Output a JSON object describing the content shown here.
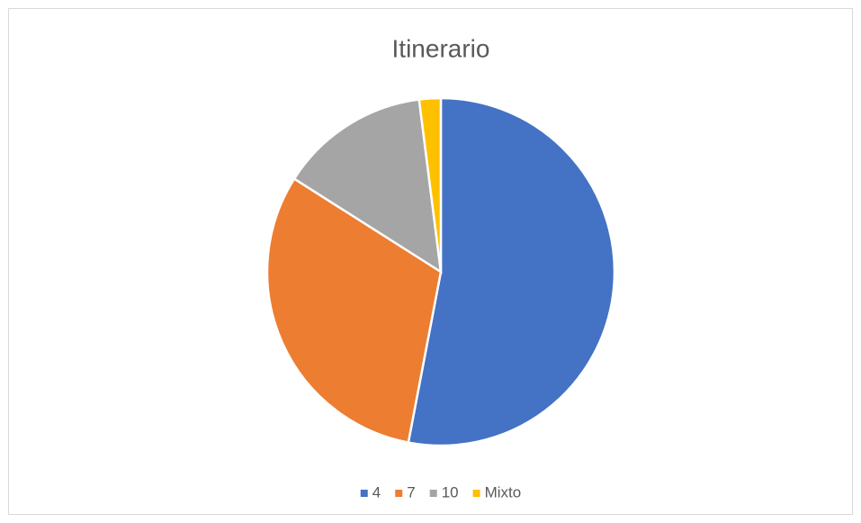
{
  "chart_data": {
    "type": "pie",
    "title": "Itinerario",
    "categories": [
      "4",
      "7",
      "10",
      "Mixto"
    ],
    "values": [
      53,
      31,
      14,
      2
    ],
    "colors": [
      "#4472c4",
      "#ed7d31",
      "#a5a5a5",
      "#ffc000"
    ],
    "legend": "bottom"
  }
}
